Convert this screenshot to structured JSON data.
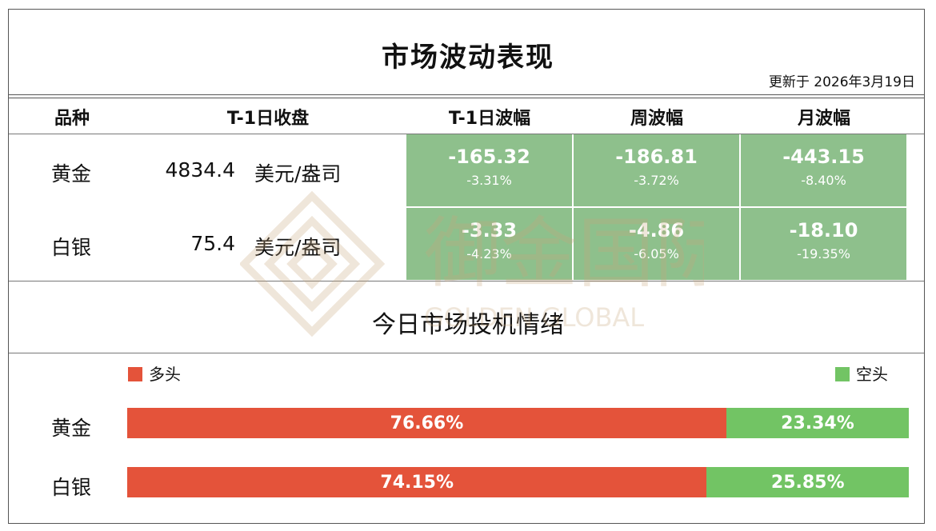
{
  "title": "市场波动表现",
  "updated": "更新于 2026年3月19日",
  "table": {
    "headers": [
      "品种",
      "T-1日收盘",
      "T-1日波幅",
      "周波幅",
      "月波幅"
    ],
    "rows": [
      {
        "name": "黄金",
        "close": "4834.4",
        "unit": "美元/盎司",
        "t1": {
          "value": "-165.32",
          "pct": "-3.31%"
        },
        "week": {
          "value": "-186.81",
          "pct": "-3.72%"
        },
        "month": {
          "value": "-443.15",
          "pct": "-8.40%"
        }
      },
      {
        "name": "白银",
        "close": "75.4",
        "unit": "美元/盎司",
        "t1": {
          "value": "-3.33",
          "pct": "-4.23%"
        },
        "week": {
          "value": "-4.86",
          "pct": "-6.05%"
        },
        "month": {
          "value": "-18.10",
          "pct": "-19.35%"
        }
      }
    ],
    "cell_color": "#8ec08c"
  },
  "sentiment_title": "今日市场投机情绪",
  "watermark": {
    "cn": "御金国际",
    "en": "GOLDEN GLOBAL"
  },
  "chart_data": {
    "type": "bar",
    "orientation": "horizontal",
    "stacked": true,
    "normalized": true,
    "categories": [
      "黄金",
      "白银"
    ],
    "series": [
      {
        "name": "多头",
        "color": "#e4533a",
        "values": [
          76.66,
          74.15
        ],
        "labels": [
          "76.66%",
          "74.15%"
        ]
      },
      {
        "name": "空头",
        "color": "#72c464",
        "values": [
          23.34,
          25.85
        ],
        "labels": [
          "23.34%",
          "25.85%"
        ]
      }
    ],
    "legend": "top"
  }
}
